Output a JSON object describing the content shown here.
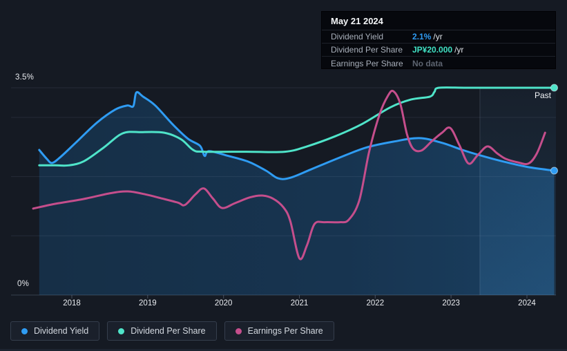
{
  "axis": {
    "y_top_label": "3.5%",
    "y_bottom_label": "0%",
    "past_label": "Past"
  },
  "tooltip": {
    "date": "May 21 2024",
    "rows": [
      {
        "label": "Dividend Yield",
        "value": "2.1%",
        "suffix": "/yr",
        "value_color": "#2f9bf3"
      },
      {
        "label": "Dividend Per Share",
        "value": "JP¥20.000",
        "suffix": "/yr",
        "value_color": "#40e2c4"
      },
      {
        "label": "Earnings Per Share",
        "value": "No data",
        "suffix": "",
        "value_color": "#5d6470"
      }
    ]
  },
  "legend": {
    "items": [
      {
        "label": "Dividend Yield"
      },
      {
        "label": "Dividend Per Share"
      },
      {
        "label": "Earnings Per Share"
      }
    ]
  },
  "chart_data": {
    "type": "line",
    "title": "Dividend history (past)",
    "x_axis": {
      "ticks": [
        "2018",
        "2019",
        "2020",
        "2021",
        "2022",
        "2023",
        "2024"
      ],
      "range": [
        2017.45,
        2024.42
      ]
    },
    "y_axis": {
      "range": [
        0,
        3.5
      ],
      "unit": "%",
      "gridline_values": [
        0,
        1,
        2,
        3,
        3.5
      ],
      "labeled_values": [
        "3.5%",
        "0%"
      ]
    },
    "past_region_start": 2023.38,
    "crosshair": {
      "date": "May 21 2024",
      "dividend_yield": "2.1% /yr",
      "dividend_per_share": "JP¥20.000 /yr",
      "earnings_per_share": "No data"
    },
    "series": [
      {
        "name": "Dividend Yield",
        "color": "#2f9cf3",
        "unit": "percent",
        "area": true,
        "end_marker": true,
        "points": [
          [
            2017.57,
            2.45
          ],
          [
            2017.67,
            2.3
          ],
          [
            2017.74,
            2.23
          ],
          [
            2017.85,
            2.33
          ],
          [
            2018.05,
            2.57
          ],
          [
            2018.33,
            2.91
          ],
          [
            2018.57,
            3.13
          ],
          [
            2018.73,
            3.2
          ],
          [
            2018.81,
            3.19
          ],
          [
            2018.85,
            3.42
          ],
          [
            2018.94,
            3.35
          ],
          [
            2019.1,
            3.2
          ],
          [
            2019.33,
            2.88
          ],
          [
            2019.53,
            2.64
          ],
          [
            2019.69,
            2.52
          ],
          [
            2019.75,
            2.35
          ],
          [
            2019.81,
            2.43
          ],
          [
            2020.06,
            2.35
          ],
          [
            2020.33,
            2.25
          ],
          [
            2020.56,
            2.1
          ],
          [
            2020.72,
            1.97
          ],
          [
            2020.88,
            1.98
          ],
          [
            2021.15,
            2.12
          ],
          [
            2021.51,
            2.31
          ],
          [
            2021.88,
            2.49
          ],
          [
            2022.24,
            2.59
          ],
          [
            2022.58,
            2.65
          ],
          [
            2022.88,
            2.57
          ],
          [
            2023.15,
            2.45
          ],
          [
            2023.38,
            2.36
          ],
          [
            2023.7,
            2.25
          ],
          [
            2024.02,
            2.16
          ],
          [
            2024.36,
            2.1
          ]
        ]
      },
      {
        "name": "Dividend Per Share",
        "color": "#4fe4c9",
        "unit": "axis-relative",
        "area": false,
        "end_marker": true,
        "points": [
          [
            2017.57,
            2.19
          ],
          [
            2017.78,
            2.19
          ],
          [
            2017.96,
            2.19
          ],
          [
            2018.16,
            2.26
          ],
          [
            2018.42,
            2.49
          ],
          [
            2018.67,
            2.73
          ],
          [
            2018.92,
            2.75
          ],
          [
            2019.22,
            2.74
          ],
          [
            2019.44,
            2.63
          ],
          [
            2019.6,
            2.45
          ],
          [
            2019.74,
            2.42
          ],
          [
            2020.3,
            2.42
          ],
          [
            2020.81,
            2.42
          ],
          [
            2021.1,
            2.51
          ],
          [
            2021.47,
            2.68
          ],
          [
            2021.83,
            2.89
          ],
          [
            2022.2,
            3.17
          ],
          [
            2022.47,
            3.3
          ],
          [
            2022.72,
            3.35
          ],
          [
            2022.78,
            3.43
          ],
          [
            2022.84,
            3.5
          ],
          [
            2023.2,
            3.5
          ],
          [
            2023.7,
            3.5
          ],
          [
            2024.36,
            3.5
          ]
        ]
      },
      {
        "name": "Earnings Per Share",
        "color": "#c54e8c",
        "unit": "axis-relative",
        "area": false,
        "end_marker": false,
        "points": [
          [
            2017.49,
            1.46
          ],
          [
            2017.78,
            1.54
          ],
          [
            2018.15,
            1.62
          ],
          [
            2018.51,
            1.72
          ],
          [
            2018.74,
            1.75
          ],
          [
            2018.97,
            1.7
          ],
          [
            2019.19,
            1.63
          ],
          [
            2019.4,
            1.56
          ],
          [
            2019.49,
            1.52
          ],
          [
            2019.63,
            1.7
          ],
          [
            2019.74,
            1.8
          ],
          [
            2019.86,
            1.63
          ],
          [
            2019.98,
            1.47
          ],
          [
            2020.15,
            1.55
          ],
          [
            2020.35,
            1.65
          ],
          [
            2020.51,
            1.68
          ],
          [
            2020.65,
            1.63
          ],
          [
            2020.79,
            1.48
          ],
          [
            2020.88,
            1.25
          ],
          [
            2021.0,
            0.62
          ],
          [
            2021.1,
            0.84
          ],
          [
            2021.2,
            1.2
          ],
          [
            2021.33,
            1.23
          ],
          [
            2021.53,
            1.23
          ],
          [
            2021.65,
            1.27
          ],
          [
            2021.79,
            1.6
          ],
          [
            2021.92,
            2.42
          ],
          [
            2022.06,
            3.06
          ],
          [
            2022.17,
            3.37
          ],
          [
            2022.24,
            3.44
          ],
          [
            2022.33,
            3.23
          ],
          [
            2022.42,
            2.71
          ],
          [
            2022.5,
            2.47
          ],
          [
            2022.61,
            2.44
          ],
          [
            2022.74,
            2.59
          ],
          [
            2022.88,
            2.74
          ],
          [
            2022.99,
            2.82
          ],
          [
            2023.11,
            2.53
          ],
          [
            2023.23,
            2.22
          ],
          [
            2023.35,
            2.36
          ],
          [
            2023.48,
            2.51
          ],
          [
            2023.61,
            2.39
          ],
          [
            2023.72,
            2.3
          ],
          [
            2023.88,
            2.24
          ],
          [
            2024.02,
            2.22
          ],
          [
            2024.13,
            2.39
          ],
          [
            2024.24,
            2.74
          ]
        ]
      }
    ]
  }
}
